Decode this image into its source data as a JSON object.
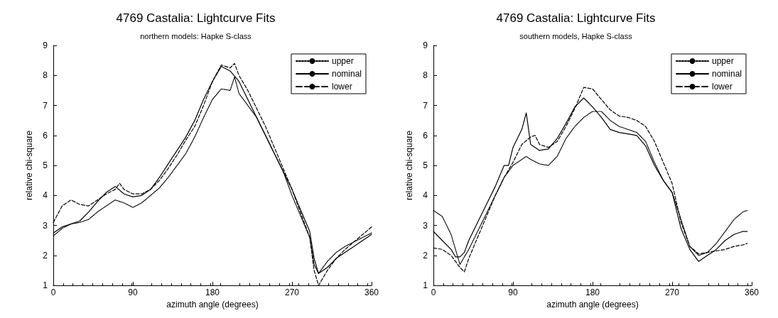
{
  "chart_data": [
    {
      "type": "line",
      "title": "4769 Castalia: Lightcurve Fits",
      "subtitle": "northern models: Hapke S-class",
      "xlabel": "azimuth angle (degrees)",
      "ylabel": "relative chi-square",
      "xlim": [
        0,
        360
      ],
      "xticks": [
        0,
        90,
        180,
        270,
        360
      ],
      "ylim": [
        1,
        9
      ],
      "yticks": [
        1,
        2,
        3,
        4,
        5,
        6,
        7,
        8,
        9
      ],
      "grid": false,
      "legend": "top right",
      "marker": "none",
      "series": [
        {
          "name": "upper",
          "color": "#000000",
          "line_style": "dotted",
          "x": [
            0,
            10,
            20,
            30,
            40,
            50,
            60,
            70,
            80,
            90,
            100,
            110,
            120,
            130,
            140,
            150,
            160,
            170,
            180,
            190,
            200,
            205,
            210,
            220,
            230,
            240,
            250,
            260,
            270,
            280,
            290,
            295,
            300,
            310,
            320,
            330,
            340,
            350,
            360
          ],
          "values": [
            2.65,
            2.9,
            3.05,
            3.1,
            3.2,
            3.45,
            3.65,
            3.85,
            3.75,
            3.6,
            3.75,
            4.0,
            4.25,
            4.6,
            5.0,
            5.4,
            5.95,
            6.6,
            7.2,
            7.55,
            7.5,
            7.95,
            7.4,
            7.0,
            6.6,
            6.0,
            5.4,
            4.8,
            4.0,
            3.3,
            2.6,
            1.7,
            1.4,
            1.8,
            2.1,
            2.3,
            2.45,
            2.6,
            2.75
          ]
        },
        {
          "name": "nominal",
          "color": "#000000",
          "line_style": "solid",
          "x": [
            0,
            10,
            20,
            30,
            40,
            50,
            60,
            70,
            80,
            90,
            100,
            110,
            120,
            130,
            140,
            150,
            160,
            170,
            180,
            190,
            200,
            210,
            220,
            230,
            240,
            250,
            260,
            270,
            280,
            290,
            295,
            300,
            310,
            320,
            330,
            340,
            350,
            360
          ],
          "values": [
            2.75,
            2.95,
            3.05,
            3.15,
            3.45,
            3.8,
            4.1,
            4.3,
            4.05,
            3.95,
            4.0,
            4.2,
            4.6,
            5.05,
            5.5,
            5.95,
            6.5,
            7.2,
            7.8,
            8.3,
            8.15,
            7.8,
            7.2,
            6.6,
            6.0,
            5.4,
            4.8,
            4.2,
            3.5,
            2.8,
            1.9,
            1.4,
            1.6,
            1.9,
            2.1,
            2.3,
            2.5,
            2.7
          ]
        },
        {
          "name": "lower",
          "color": "#000000",
          "line_style": "dashed",
          "x": [
            0,
            10,
            20,
            30,
            40,
            50,
            60,
            70,
            75,
            80,
            90,
            100,
            110,
            120,
            130,
            140,
            150,
            160,
            170,
            180,
            190,
            200,
            205,
            210,
            220,
            230,
            240,
            250,
            260,
            270,
            280,
            290,
            295,
            300,
            310,
            320,
            330,
            340,
            350,
            360
          ],
          "values": [
            3.1,
            3.65,
            3.85,
            3.7,
            3.65,
            3.85,
            4.05,
            4.2,
            4.4,
            4.2,
            4.05,
            4.05,
            4.2,
            4.5,
            4.9,
            5.35,
            5.85,
            6.3,
            7.0,
            7.8,
            8.35,
            8.25,
            8.4,
            8.0,
            7.5,
            6.9,
            6.3,
            5.6,
            4.9,
            4.2,
            3.4,
            2.6,
            1.5,
            1.0,
            1.5,
            1.9,
            2.2,
            2.45,
            2.7,
            2.95
          ]
        }
      ]
    },
    {
      "type": "line",
      "title": "4769 Castalia: Lightcurve Fits",
      "subtitle": "southern models, Hapke S-class",
      "xlabel": "azimuth angle (degrees)",
      "ylabel": "relative chi-square",
      "xlim": [
        0,
        360
      ],
      "xticks": [
        0,
        90,
        180,
        270,
        360
      ],
      "ylim": [
        1,
        9
      ],
      "yticks": [
        1,
        2,
        3,
        4,
        5,
        6,
        7,
        8,
        9
      ],
      "grid": false,
      "legend": "top right",
      "marker": "none",
      "series": [
        {
          "name": "upper",
          "color": "#000000",
          "line_style": "dotted",
          "x": [
            0,
            10,
            20,
            25,
            30,
            40,
            50,
            60,
            70,
            80,
            90,
            100,
            105,
            110,
            120,
            130,
            140,
            150,
            160,
            170,
            180,
            190,
            200,
            210,
            220,
            230,
            240,
            250,
            260,
            270,
            280,
            290,
            300,
            310,
            320,
            330,
            340,
            350,
            355
          ],
          "values": [
            3.5,
            3.3,
            2.7,
            2.2,
            1.7,
            2.2,
            2.8,
            3.4,
            4.0,
            4.6,
            5.0,
            5.2,
            5.3,
            5.2,
            5.05,
            5.0,
            5.3,
            5.9,
            6.3,
            6.6,
            6.8,
            6.8,
            6.5,
            6.3,
            6.2,
            6.1,
            5.8,
            5.1,
            4.5,
            4.1,
            3.2,
            2.3,
            2.0,
            2.1,
            2.4,
            2.8,
            3.2,
            3.45,
            3.5
          ]
        },
        {
          "name": "nominal",
          "color": "#000000",
          "line_style": "solid",
          "x": [
            0,
            10,
            20,
            25,
            30,
            35,
            40,
            50,
            60,
            70,
            80,
            85,
            90,
            100,
            105,
            110,
            120,
            130,
            140,
            150,
            160,
            170,
            180,
            190,
            200,
            210,
            220,
            230,
            240,
            250,
            260,
            270,
            280,
            290,
            300,
            310,
            320,
            330,
            340,
            350,
            355
          ],
          "values": [
            2.8,
            2.5,
            2.2,
            1.95,
            1.95,
            2.1,
            2.5,
            3.1,
            3.7,
            4.3,
            5.0,
            5.0,
            5.6,
            6.2,
            6.75,
            5.7,
            5.5,
            5.55,
            5.9,
            6.4,
            6.95,
            7.25,
            6.95,
            6.6,
            6.2,
            6.1,
            6.05,
            6.0,
            5.65,
            5.0,
            4.5,
            4.1,
            2.9,
            2.2,
            1.8,
            2.0,
            2.2,
            2.5,
            2.7,
            2.8,
            2.8
          ]
        },
        {
          "name": "lower",
          "color": "#000000",
          "line_style": "dashed",
          "x": [
            0,
            10,
            20,
            30,
            35,
            40,
            50,
            60,
            70,
            80,
            90,
            100,
            110,
            115,
            120,
            130,
            140,
            150,
            160,
            170,
            180,
            190,
            200,
            210,
            220,
            230,
            240,
            250,
            260,
            270,
            280,
            290,
            300,
            310,
            320,
            330,
            340,
            350,
            355
          ],
          "values": [
            2.25,
            2.2,
            2.0,
            1.6,
            1.45,
            1.9,
            2.6,
            3.3,
            4.0,
            4.6,
            5.1,
            5.7,
            5.95,
            6.0,
            5.7,
            5.6,
            5.8,
            6.3,
            6.9,
            7.6,
            7.55,
            7.2,
            6.85,
            6.65,
            6.6,
            6.5,
            6.3,
            5.8,
            5.1,
            4.4,
            3.1,
            2.3,
            2.05,
            2.1,
            2.15,
            2.2,
            2.3,
            2.35,
            2.4
          ]
        }
      ]
    }
  ]
}
